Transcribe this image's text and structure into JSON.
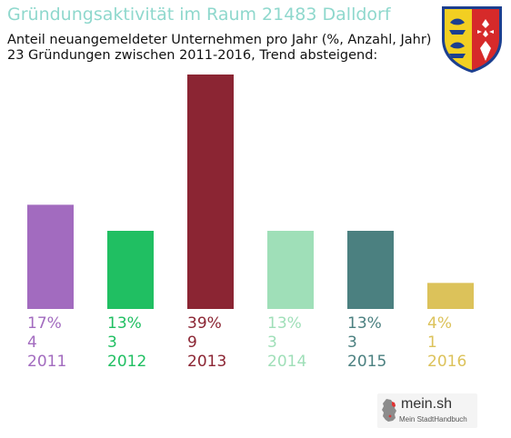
{
  "header": {
    "title": "Gründungsaktivität im Raum 21483 Dalldorf",
    "subtitle_line1": "Anteil neuangemeldeter Unternehmen pro Jahr (%, Anzahl, Jahr)",
    "subtitle_line2": "23 Gründungen zwischen 2011-2016, Trend absteigend:"
  },
  "crest": {
    "icon": "schleswig-holstein-coat-of-arms-icon"
  },
  "chart_data": {
    "type": "bar",
    "categories": [
      "2011",
      "2012",
      "2013",
      "2014",
      "2015",
      "2016"
    ],
    "values": [
      4,
      3,
      9,
      3,
      3,
      1
    ],
    "percent_labels": [
      "17%",
      "13%",
      "39%",
      "13%",
      "13%",
      "4%"
    ],
    "colors": [
      "#a26bbf",
      "#20bf62",
      "#8b2533",
      "#9fdfb8",
      "#4b8080",
      "#dcc25a"
    ],
    "title": "",
    "xlabel": "",
    "ylabel": "",
    "ylim": [
      0,
      9
    ],
    "grid": false,
    "legend": "none"
  },
  "logo": {
    "name": "mein.sh",
    "tagline": "Mein StadtHandbuch",
    "icon": "germany-map-icon"
  }
}
